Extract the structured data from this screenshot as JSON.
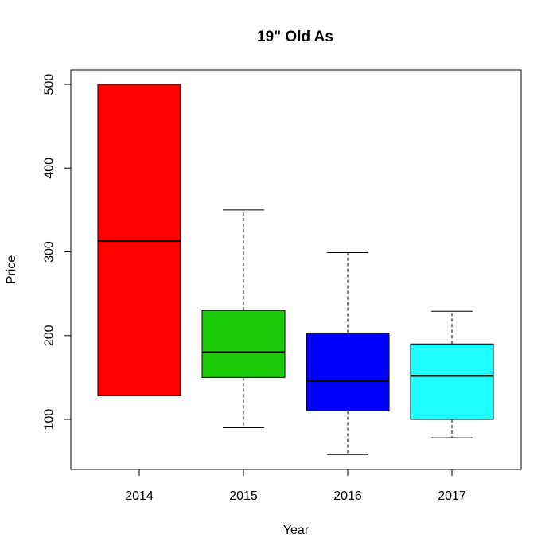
{
  "chart_data": {
    "type": "boxplot",
    "title": "19\" Old As",
    "xlabel": "Year",
    "ylabel": "Price",
    "ylim": [
      40,
      525
    ],
    "yticks": [
      "100",
      "200",
      "300",
      "400",
      "500"
    ],
    "grid": false,
    "categories": [
      "2014",
      "2015",
      "2016",
      "2017"
    ],
    "boxes": [
      {
        "category": "2014",
        "min": 128,
        "q1": 128,
        "median": 313,
        "q3": 500,
        "max": 500,
        "color": "#ff0000"
      },
      {
        "category": "2015",
        "min": 90,
        "q1": 150,
        "median": 180,
        "q3": 230,
        "max": 350,
        "color": "#1ccc0a"
      },
      {
        "category": "2016",
        "min": 58,
        "q1": 110,
        "median": 146,
        "q3": 203,
        "max": 299,
        "color": "#0000ff"
      },
      {
        "category": "2017",
        "min": 78,
        "q1": 100,
        "median": 152,
        "q3": 190,
        "max": 229,
        "color": "#1effff"
      }
    ]
  }
}
